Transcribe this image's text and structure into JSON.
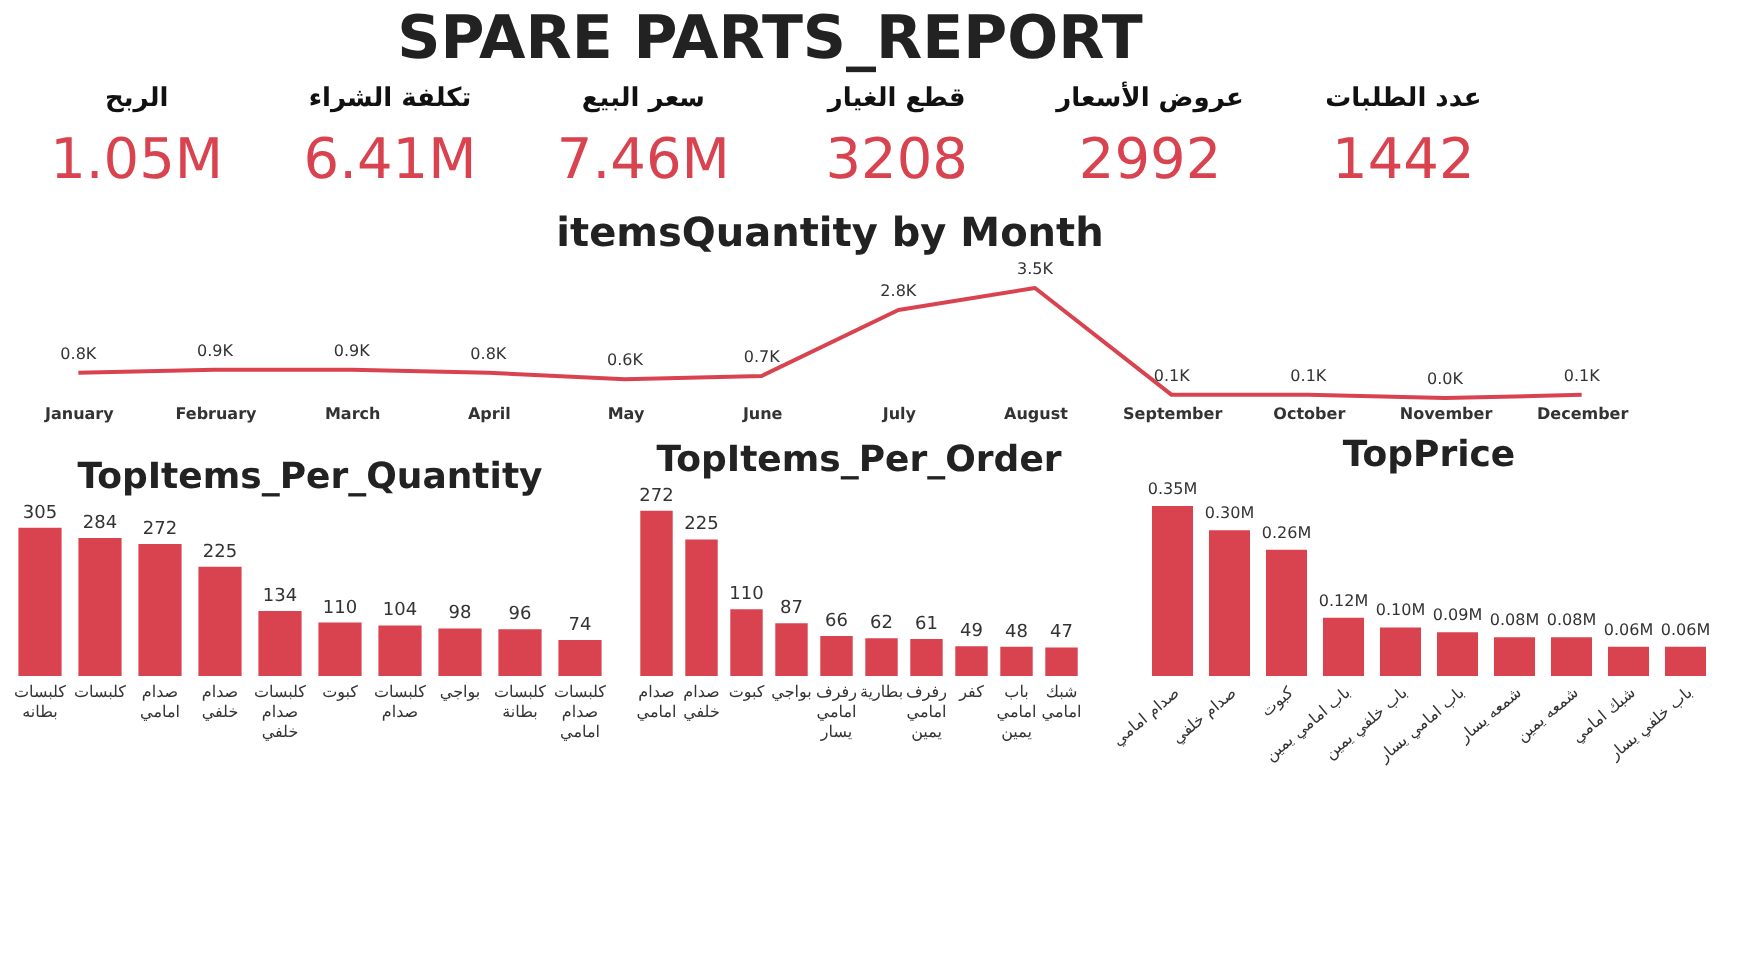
{
  "chart_data": [
    {
      "type": "other",
      "title": "SPARE PARTS_REPORT",
      "categories": [
        "الربح",
        "تكلفة الشراء",
        "سعر البيع",
        "قطع الغيار",
        "عروض الأسعار",
        "عدد الطلبات"
      ],
      "value_labels": [
        "1.05M",
        "6.41M",
        "7.46M",
        "3208",
        "2992",
        "1442"
      ],
      "color": "#d9434f"
    },
    {
      "type": "line",
      "title": "itemsQuantity by Month",
      "categories": [
        "January",
        "February",
        "March",
        "April",
        "May",
        "June",
        "July",
        "August",
        "September",
        "October",
        "November",
        "December"
      ],
      "values": [
        800,
        900,
        900,
        800,
        600,
        700,
        2800,
        3500,
        100,
        100,
        0,
        100
      ],
      "value_labels": [
        "0.8K",
        "0.9K",
        "0.9K",
        "0.8K",
        "0.6K",
        "0.7K",
        "2.8K",
        "3.5K",
        "0.1K",
        "0.1K",
        "0.0K",
        "0.1K"
      ],
      "color": "#d9434f",
      "marker": "none",
      "line_style": "solid",
      "grid": false
    },
    {
      "type": "bar",
      "title": "TopItems_Per_Quantity",
      "categories": [
        "كلبسات بطانه",
        "كلبسات",
        "صدام امامي",
        "صدام خلفي",
        "كلبسات صدام خلفي",
        "كبوت",
        "كلبسات صدام",
        "بواجي",
        "كلبسات بطانة",
        "كلبسات صدام امامي"
      ],
      "values": [
        305,
        284,
        272,
        225,
        134,
        110,
        104,
        98,
        96,
        74
      ],
      "color": "#d9434f",
      "data_labels": true,
      "grid": false
    },
    {
      "type": "bar",
      "title": "TopItems_Per_Order",
      "categories": [
        "صدام امامي",
        "صدام خلفي",
        "كبوت",
        "بواجي",
        "رفرف امامي يسار",
        "بطارية",
        "رفرف امامي يمين",
        "كفر",
        "باب امامي يمين",
        "شبك امامي"
      ],
      "values": [
        272,
        225,
        110,
        87,
        66,
        62,
        61,
        49,
        48,
        47
      ],
      "color": "#d9434f",
      "data_labels": true,
      "grid": false
    },
    {
      "type": "bar",
      "title": "TopPrice",
      "categories": [
        "صدام امامي",
        "صدام خلفي",
        "كبوت",
        "باب امامي يمين",
        "باب خلفي يمين",
        "باب امامي يسار",
        "شمعه يسار",
        "شمعه يمين",
        "شبك امامي",
        "باب خلفي يسار"
      ],
      "values": [
        350000,
        300000,
        260000,
        120000,
        100000,
        90000,
        80000,
        80000,
        60000,
        60000
      ],
      "value_labels": [
        "0.35M",
        "0.30M",
        "0.26M",
        "0.12M",
        "0.10M",
        "0.09M",
        "0.08M",
        "0.08M",
        "0.06M",
        "0.06M"
      ],
      "color": "#d9434f",
      "grid": false
    }
  ]
}
